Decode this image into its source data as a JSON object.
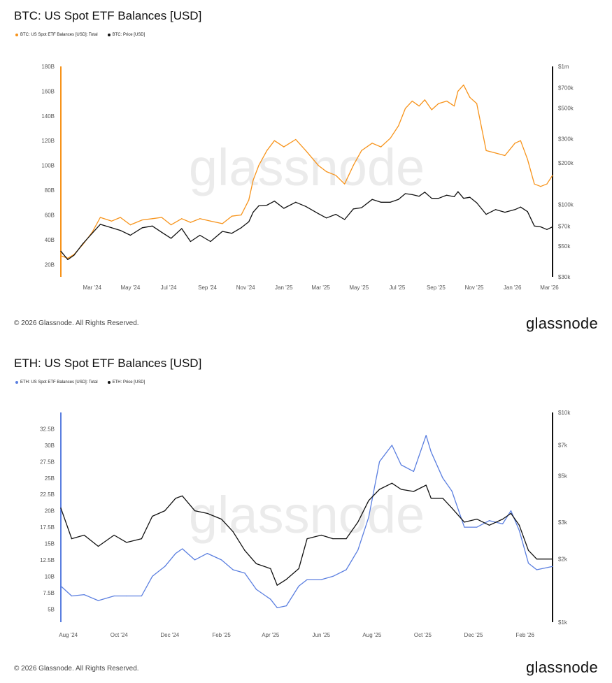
{
  "chart_data": [
    {
      "type": "line",
      "title": "BTC: US Spot ETF Balances [USD]",
      "legend": [
        "BTC: US Spot ETF Balances [USD]: Total",
        "BTC: Price [USD]"
      ],
      "legend_placement": "top-left",
      "watermark": "glassnode",
      "colors": {
        "balance": "#f7931a",
        "price": "#111111",
        "axis_accent": "#f7931a"
      },
      "x_tick_labels": [
        "Mar '24",
        "May '24",
        "Jul '24",
        "Sep '24",
        "Nov '24",
        "Jan '25",
        "Mar '25",
        "May '25",
        "Jul '25",
        "Sep '25",
        "Nov '25",
        "Jan '26",
        "Mar '26"
      ],
      "x_range": [
        "2024-01-11",
        "2026-03-06"
      ],
      "y_left": {
        "scale": "linear",
        "range": [
          10,
          180
        ],
        "tick_values": [
          20,
          40,
          60,
          80,
          100,
          120,
          140,
          160,
          180
        ],
        "tick_labels": [
          "20B",
          "40B",
          "60B",
          "80B",
          "100B",
          "120B",
          "140B",
          "160B",
          "180B"
        ]
      },
      "y_right": {
        "scale": "log",
        "range": [
          30000,
          1000000
        ],
        "tick_values": [
          30000,
          50000,
          70000,
          100000,
          200000,
          300000,
          500000,
          700000,
          1000000
        ],
        "tick_labels": [
          "$30k",
          "$50k",
          "$70k",
          "$100k",
          "$200k",
          "$300k",
          "$500k",
          "$700k",
          "$1m"
        ]
      },
      "series": [
        {
          "name": "BTC: US Spot ETF Balances [USD]: Total",
          "axis": "left",
          "x": [
            "2024-01-11",
            "2024-01-22",
            "2024-02-01",
            "2024-02-15",
            "2024-03-01",
            "2024-03-14",
            "2024-04-01",
            "2024-04-15",
            "2024-05-01",
            "2024-05-20",
            "2024-06-05",
            "2024-06-20",
            "2024-07-05",
            "2024-07-22",
            "2024-08-05",
            "2024-08-20",
            "2024-09-06",
            "2024-09-25",
            "2024-10-10",
            "2024-10-25",
            "2024-11-06",
            "2024-11-13",
            "2024-11-22",
            "2024-12-05",
            "2024-12-17",
            "2025-01-01",
            "2025-01-20",
            "2025-02-05",
            "2025-02-25",
            "2025-03-10",
            "2025-03-25",
            "2025-04-08",
            "2025-04-22",
            "2025-05-05",
            "2025-05-22",
            "2025-06-05",
            "2025-06-20",
            "2025-07-03",
            "2025-07-14",
            "2025-07-25",
            "2025-08-05",
            "2025-08-14",
            "2025-08-25",
            "2025-09-05",
            "2025-09-18",
            "2025-09-30",
            "2025-10-06",
            "2025-10-15",
            "2025-10-25",
            "2025-11-05",
            "2025-11-20",
            "2025-12-05",
            "2025-12-20",
            "2026-01-05",
            "2026-01-14",
            "2026-01-25",
            "2026-02-05",
            "2026-02-15",
            "2026-02-25",
            "2026-03-06"
          ],
          "values": [
            27,
            25,
            28,
            36,
            46,
            58,
            55,
            58,
            52,
            56,
            57,
            58,
            52,
            57,
            54,
            57,
            55,
            53,
            59,
            60,
            72,
            88,
            100,
            112,
            120,
            115,
            121,
            112,
            100,
            95,
            92,
            85,
            100,
            112,
            118,
            115,
            122,
            132,
            146,
            152,
            148,
            153,
            145,
            150,
            152,
            148,
            160,
            165,
            155,
            150,
            112,
            110,
            108,
            118,
            120,
            105,
            85,
            83,
            85,
            92
          ]
        },
        {
          "name": "BTC: Price [USD]",
          "axis": "right",
          "x": [
            "2024-01-11",
            "2024-01-22",
            "2024-02-01",
            "2024-02-15",
            "2024-03-01",
            "2024-03-14",
            "2024-04-01",
            "2024-04-15",
            "2024-05-01",
            "2024-05-20",
            "2024-06-05",
            "2024-06-20",
            "2024-07-05",
            "2024-07-22",
            "2024-08-05",
            "2024-08-20",
            "2024-09-06",
            "2024-09-25",
            "2024-10-10",
            "2024-10-25",
            "2024-11-06",
            "2024-11-13",
            "2024-11-22",
            "2024-12-05",
            "2024-12-17",
            "2025-01-01",
            "2025-01-20",
            "2025-02-05",
            "2025-02-25",
            "2025-03-10",
            "2025-03-25",
            "2025-04-08",
            "2025-04-22",
            "2025-05-05",
            "2025-05-22",
            "2025-06-05",
            "2025-06-20",
            "2025-07-03",
            "2025-07-14",
            "2025-07-25",
            "2025-08-05",
            "2025-08-14",
            "2025-08-25",
            "2025-09-05",
            "2025-09-18",
            "2025-09-30",
            "2025-10-06",
            "2025-10-15",
            "2025-10-25",
            "2025-11-05",
            "2025-11-20",
            "2025-12-05",
            "2025-12-20",
            "2026-01-05",
            "2026-01-14",
            "2026-01-25",
            "2026-02-05",
            "2026-02-15",
            "2026-02-25",
            "2026-03-06"
          ],
          "values": [
            46000,
            40000,
            43000,
            52000,
            62000,
            72000,
            68000,
            65000,
            60000,
            68000,
            70000,
            63000,
            57000,
            67000,
            54000,
            60000,
            54000,
            64000,
            62000,
            68000,
            75000,
            88000,
            98000,
            99000,
            106000,
            94000,
            104000,
            97000,
            86000,
            80000,
            85000,
            78000,
            93000,
            95000,
            109000,
            104000,
            104000,
            109000,
            120000,
            118000,
            115000,
            123000,
            111000,
            111000,
            117000,
            114000,
            124000,
            111000,
            113000,
            103000,
            85000,
            92000,
            88000,
            92000,
            96000,
            89000,
            70000,
            69000,
            66000,
            69000
          ]
        }
      ]
    },
    {
      "type": "line",
      "title": "ETH: US Spot ETF Balances [USD]",
      "legend": [
        "ETH: US Spot ETF Balances [USD]: Total",
        "ETH: Price [USD]"
      ],
      "legend_placement": "top-left",
      "watermark": "glassnode",
      "colors": {
        "balance": "#5b7fe0",
        "price": "#111111",
        "axis_accent": "#5b7fe0"
      },
      "x_tick_labels": [
        "Aug '24",
        "Oct '24",
        "Dec '24",
        "Feb '25",
        "Apr '25",
        "Jun '25",
        "Aug '25",
        "Oct '25",
        "Dec '25",
        "Feb '26"
      ],
      "x_range": [
        "2024-07-23",
        "2026-03-06"
      ],
      "y_left": {
        "scale": "linear",
        "range": [
          3,
          35
        ],
        "tick_values": [
          5,
          7.5,
          10,
          12.5,
          15,
          17.5,
          20,
          22.5,
          25,
          27.5,
          30,
          32.5
        ],
        "tick_labels": [
          "5B",
          "7.5B",
          "10B",
          "12.5B",
          "15B",
          "17.5B",
          "20B",
          "22.5B",
          "25B",
          "27.5B",
          "30B",
          "32.5B"
        ]
      },
      "y_right": {
        "scale": "log",
        "range": [
          1000,
          10000
        ],
        "tick_values": [
          1000,
          2000,
          3000,
          5000,
          7000,
          10000
        ],
        "tick_labels": [
          "$1k",
          "$2k",
          "$3k",
          "$5k",
          "$7k",
          "$10k"
        ]
      },
      "series": [
        {
          "name": "ETH: US Spot ETF Balances [USD]: Total",
          "axis": "left",
          "x": [
            "2024-07-23",
            "2024-08-05",
            "2024-08-20",
            "2024-09-06",
            "2024-09-25",
            "2024-10-10",
            "2024-10-28",
            "2024-11-10",
            "2024-11-25",
            "2024-12-08",
            "2024-12-16",
            "2024-12-31",
            "2025-01-15",
            "2025-02-01",
            "2025-02-15",
            "2025-03-01",
            "2025-03-15",
            "2025-04-01",
            "2025-04-09",
            "2025-04-20",
            "2025-05-05",
            "2025-05-15",
            "2025-06-01",
            "2025-06-15",
            "2025-07-01",
            "2025-07-15",
            "2025-07-28",
            "2025-08-10",
            "2025-08-25",
            "2025-09-05",
            "2025-09-20",
            "2025-10-05",
            "2025-10-11",
            "2025-10-25",
            "2025-11-05",
            "2025-11-20",
            "2025-12-05",
            "2025-12-20",
            "2026-01-05",
            "2026-01-15",
            "2026-01-25",
            "2026-02-05",
            "2026-02-15",
            "2026-03-06"
          ],
          "values": [
            8.5,
            7,
            7.2,
            6.3,
            7,
            7,
            7,
            10,
            11.5,
            13.5,
            14.2,
            12.5,
            13.5,
            12.5,
            11,
            10.5,
            8,
            6.5,
            5.2,
            5.5,
            8.5,
            9.5,
            9.5,
            10,
            11,
            14,
            19,
            27.5,
            30,
            27,
            26,
            31.5,
            29,
            25,
            23,
            17.5,
            17.5,
            18.5,
            18,
            20,
            17,
            12,
            11,
            11.5
          ]
        },
        {
          "name": "ETH: Price [USD]",
          "axis": "right",
          "x": [
            "2024-07-23",
            "2024-08-05",
            "2024-08-20",
            "2024-09-06",
            "2024-09-25",
            "2024-10-10",
            "2024-10-28",
            "2024-11-10",
            "2024-11-25",
            "2024-12-08",
            "2024-12-16",
            "2024-12-31",
            "2025-01-15",
            "2025-02-01",
            "2025-02-15",
            "2025-03-01",
            "2025-03-15",
            "2025-04-01",
            "2025-04-09",
            "2025-04-20",
            "2025-05-05",
            "2025-05-15",
            "2025-06-01",
            "2025-06-15",
            "2025-07-01",
            "2025-07-15",
            "2025-07-28",
            "2025-08-10",
            "2025-08-25",
            "2025-09-05",
            "2025-09-20",
            "2025-10-05",
            "2025-10-11",
            "2025-10-25",
            "2025-11-05",
            "2025-11-20",
            "2025-12-05",
            "2025-12-20",
            "2026-01-05",
            "2026-01-15",
            "2026-01-25",
            "2026-02-05",
            "2026-02-15",
            "2026-03-06"
          ],
          "values": [
            3500,
            2500,
            2600,
            2300,
            2600,
            2400,
            2500,
            3200,
            3400,
            3900,
            4000,
            3400,
            3300,
            3100,
            2700,
            2200,
            1900,
            1800,
            1500,
            1600,
            1800,
            2500,
            2600,
            2500,
            2500,
            3000,
            3800,
            4300,
            4600,
            4300,
            4200,
            4500,
            3900,
            3900,
            3500,
            3000,
            3100,
            2900,
            3100,
            3300,
            2900,
            2200,
            2000,
            2000
          ]
        }
      ]
    }
  ],
  "footer": {
    "copyright": "© 2026 Glassnode. All Rights Reserved.",
    "logo": "glassnode"
  }
}
